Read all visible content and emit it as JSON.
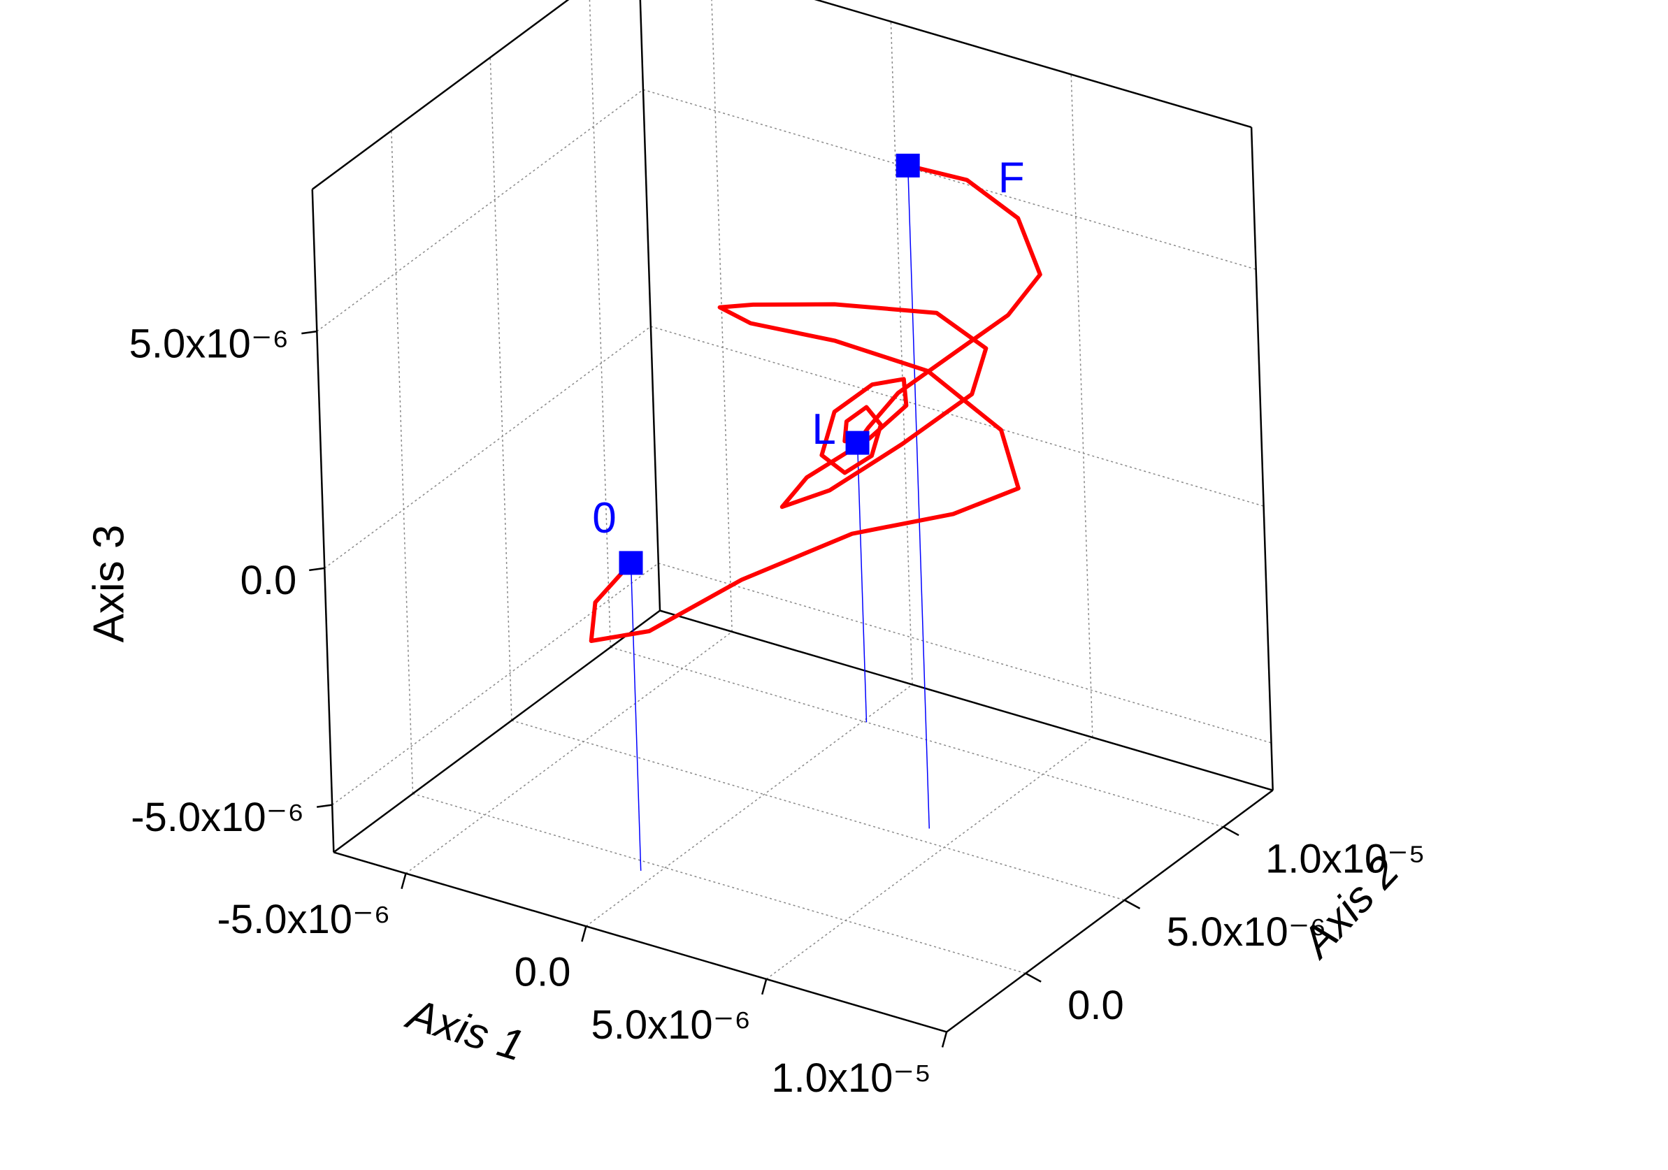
{
  "chart_data": {
    "type": "line3d",
    "xlabel": "Axis 1",
    "ylabel": "Axis 2",
    "zlabel": "Axis 3",
    "xlim": [
      -7e-06,
      1e-05
    ],
    "ylim": [
      -4e-06,
      1.25e-05
    ],
    "zlim": [
      -6e-06,
      8e-06
    ],
    "xticks": [
      {
        "value": -5e-06,
        "label": "-5.0x10⁻⁶"
      },
      {
        "value": 0,
        "label": "0.0"
      },
      {
        "value": 5e-06,
        "label": "5.0x10⁻⁶"
      },
      {
        "value": 1e-05,
        "label": "1.0x10⁻⁵"
      }
    ],
    "yticks": [
      {
        "value": 0,
        "label": "0.0"
      },
      {
        "value": 5e-06,
        "label": "5.0x10⁻⁶"
      },
      {
        "value": 1e-05,
        "label": "1.0x10⁻⁵"
      }
    ],
    "zticks": [
      {
        "value": -5e-06,
        "label": "-5.0x10⁻⁶"
      },
      {
        "value": 0,
        "label": "0.0"
      },
      {
        "value": 5e-06,
        "label": "5.0x10⁻⁶"
      }
    ],
    "grid": true,
    "series": [
      {
        "color": "#ff0000",
        "x": [
          -4e-07,
          -2e-06,
          -3e-06,
          -2.5e-06,
          -1e-06,
          1e-06,
          3e-06,
          4e-06,
          3e-06,
          1e-06,
          -1e-06,
          -2.5e-06,
          -2.5e-06,
          -1e-06,
          1e-06,
          3e-06,
          3.5e-06,
          2.5e-06,
          5e-07,
          -1e-06,
          -1.5e-06,
          -5e-07,
          1e-06,
          1.5e-06,
          1e-06,
          0,
          -8e-07,
          -8e-07,
          0,
          6e-07,
          6e-07,
          1e-07,
          -3e-07,
          -2e-07,
          2e-07,
          3e-07,
          1e-06,
          3e-06,
          5e-06,
          6.5e-06,
          6.5e-06,
          5.5e-06,
          4.2e-06
        ],
        "y": [
          -5e-07,
          5e-07,
          2e-06,
          4e-06,
          6e-06,
          8e-06,
          9.5e-06,
          1.1e-05,
          1.2e-05,
          1.2e-05,
          1.1e-05,
          9.5e-06,
          8e-06,
          7e-06,
          7.5e-06,
          9e-06,
          1.05e-05,
          1.15e-05,
          1.15e-05,
          1.05e-05,
          9e-06,
          8.5e-06,
          9e-06,
          1e-05,
          1.08e-05,
          1.1e-05,
          1.05e-05,
          9.8e-06,
          9.5e-06,
          9.8e-06,
          1.03e-05,
          1.05e-05,
          1.02e-05,
          9.9e-06,
          9.9e-06,
          1.02e-05,
          1.05e-05,
          1e-05,
          9e-06,
          8e-06,
          7e-06,
          6.3e-06,
          5.7e-06
        ],
        "z": [
          5e-07,
          -1e-06,
          -2.5e-06,
          -2.8e-06,
          -2e-06,
          -1.2e-06,
          -8e-07,
          -5e-07,
          2e-07,
          1e-06,
          1.5e-06,
          2e-06,
          2.8e-06,
          3.5e-06,
          3.8e-06,
          3.6e-06,
          2.5e-06,
          1e-06,
          -5e-07,
          -1.5e-06,
          -1.5e-06,
          -5e-07,
          5e-07,
          1e-06,
          1.2e-06,
          8e-07,
          2e-07,
          -5e-07,
          -6e-07,
          -2e-07,
          3e-07,
          5e-07,
          2e-07,
          -1e-07,
          0,
          2e-07,
          1e-06,
          2.5e-06,
          4e-06,
          5.5e-06,
          7e-06,
          7.8e-06,
          8e-06
        ]
      }
    ],
    "points": [
      {
        "label": "0",
        "x": -4e-07,
        "y": -5e-07,
        "z": 5e-07
      },
      {
        "label": "L",
        "x": 1e-07,
        "y": 1e-05,
        "z": -1e-07
      },
      {
        "label": "F",
        "x": 4.2e-06,
        "y": 5.7e-06,
        "z": 8e-06
      }
    ],
    "point_color": "#0000ff"
  }
}
